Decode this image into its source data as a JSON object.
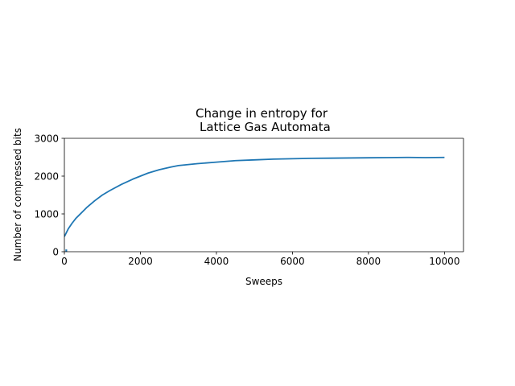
{
  "chart_data": {
    "type": "line",
    "title_line1": "Change in entropy for",
    "title_line2": " Lattice Gas Automata",
    "xlabel": "Sweeps",
    "ylabel": "Number of compressed bits",
    "xlim": [
      0,
      10500
    ],
    "ylim": [
      0,
      3000
    ],
    "x_ticks": [
      0,
      2000,
      4000,
      6000,
      8000,
      10000
    ],
    "y_ticks": [
      0,
      1000,
      2000,
      3000
    ],
    "x_tick_labels": [
      "0",
      "2000",
      "4000",
      "6000",
      "8000",
      "10000"
    ],
    "y_tick_labels": [
      "0",
      "1000",
      "2000",
      "3000"
    ],
    "grid": false,
    "legend": "none",
    "series": [
      {
        "color": "#1f77b4",
        "x": [
          0,
          100,
          200,
          300,
          400,
          500,
          600,
          800,
          1000,
          1200,
          1500,
          1800,
          2000,
          2200,
          2500,
          2800,
          3000,
          3500,
          4000,
          4500,
          5000,
          5500,
          6000,
          6500,
          7000,
          7500,
          8000,
          8500,
          9000,
          9500,
          10000
        ],
        "y": [
          400,
          600,
          750,
          880,
          980,
          1080,
          1180,
          1350,
          1500,
          1620,
          1780,
          1920,
          2000,
          2080,
          2170,
          2240,
          2280,
          2330,
          2370,
          2410,
          2430,
          2450,
          2460,
          2470,
          2475,
          2480,
          2485,
          2490,
          2495,
          2490,
          2495
        ]
      }
    ],
    "artifact_marker": {
      "x": 50,
      "y": 60,
      "color": "#1f77b4"
    }
  }
}
